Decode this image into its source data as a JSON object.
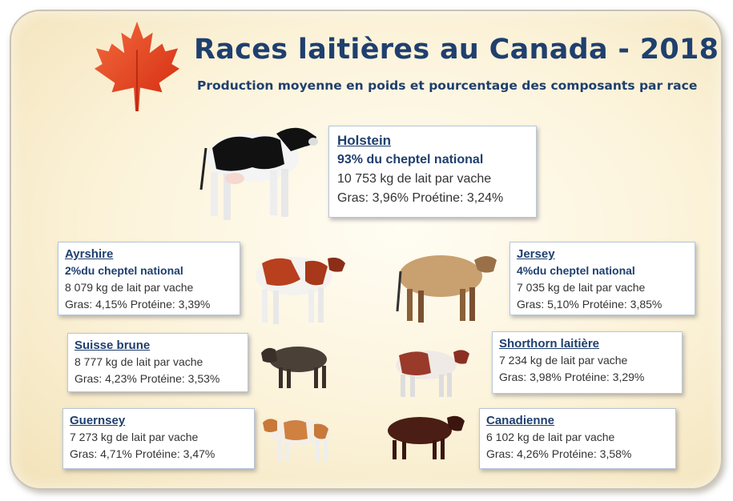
{
  "title": "Races laitières au Canada - 2018",
  "subtitle": "Production moyenne en poids et pourcentage des composants par race",
  "labels": {
    "gras": "Gras:",
    "proteine_holstein": "Proétine:",
    "proteine": "Protéine:"
  },
  "colors": {
    "title": "#1f3f6e",
    "leaf": "#e8401c"
  },
  "icons": {
    "leaf": "maple-leaf-icon"
  },
  "breeds": {
    "holstein": {
      "name": "Holstein",
      "share": "93% du cheptel national",
      "milk": "10 753 kg de lait par vache",
      "fat": "3,96%",
      "protein": "3,24%"
    },
    "ayrshire": {
      "name": "Ayrshire",
      "share": "2%du cheptel national",
      "milk": "8 079 kg de lait par vache",
      "fat": "4,15%",
      "protein": "3,39%"
    },
    "jersey": {
      "name": "Jersey",
      "share": "4%du cheptel national",
      "milk": "7 035 kg de lait par vache",
      "fat": "5,10%",
      "protein": "3,85%"
    },
    "suisse": {
      "name": "Suisse brune",
      "milk": "8 777 kg de lait par vache",
      "fat": "4,23%",
      "protein": "3,53%"
    },
    "shorthorn": {
      "name": "Shorthorn laitière",
      "milk": "7 234 kg de lait par vache",
      "fat": "3,98%",
      "protein": "3,29%"
    },
    "guernsey": {
      "name": "Guernsey",
      "milk": "7 273 kg de lait par vache",
      "fat": "4,71%",
      "protein": "3,47%"
    },
    "canadienne": {
      "name": "Canadienne",
      "milk": "6 102 kg de lait par vache",
      "fat": "4,26%",
      "protein": "3,58%"
    }
  }
}
